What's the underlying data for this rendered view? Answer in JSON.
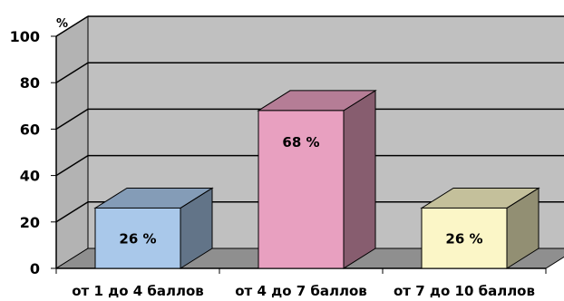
{
  "chart_data": {
    "type": "bar",
    "categories": [
      "от 1 до 4 баллов",
      "от 4 до 7 баллов",
      "от 7 до 10 баллов"
    ],
    "values": [
      26,
      68,
      26
    ],
    "data_labels": [
      "26 %",
      "68 %",
      "26 %"
    ],
    "ylim": [
      0,
      100
    ],
    "yticks": [
      0,
      20,
      40,
      60,
      80,
      100
    ],
    "y_unit": "%",
    "grid": true,
    "legend": "none",
    "colors": [
      "#a9c8ea",
      "#e8a0c0",
      "#fbf6c7"
    ]
  }
}
